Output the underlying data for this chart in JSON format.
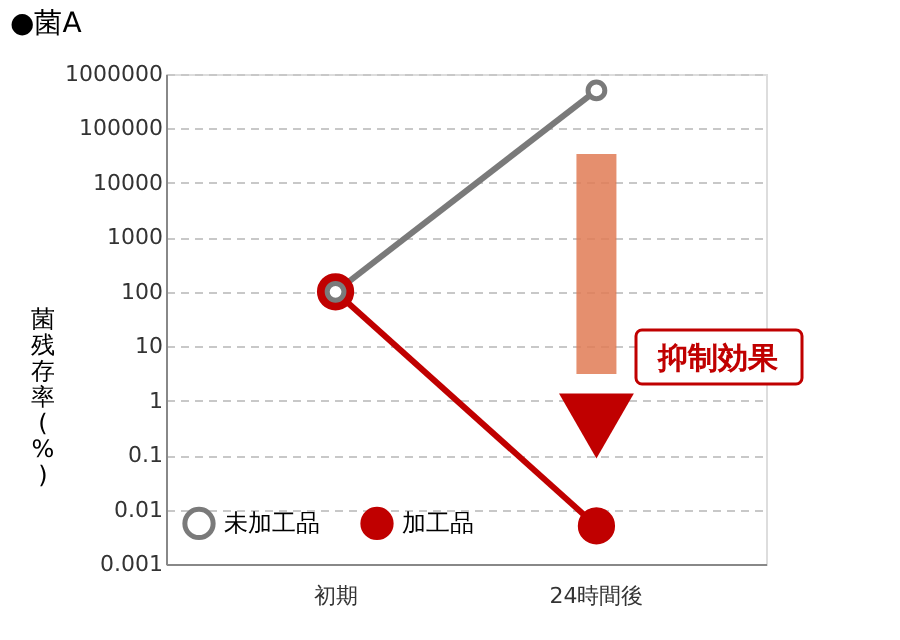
{
  "chart_data": {
    "type": "line",
    "title": "●菌A",
    "ylabel": "菌残存率(%)",
    "categories": [
      "初期",
      "24時間後"
    ],
    "series": [
      {
        "name": "未加工品",
        "color": "#7a7a7a",
        "values": [
          100,
          500000
        ]
      },
      {
        "name": "加工品",
        "color": "#c00000",
        "values": [
          100,
          0.005
        ]
      }
    ],
    "log": true,
    "ylim": [
      0.001,
      1000000
    ],
    "yticks": [
      0.001,
      0.01,
      0.1,
      1,
      10,
      100,
      1000,
      10000,
      100000,
      1000000
    ],
    "grid": "y",
    "legend": "bottom left",
    "marker": "circle",
    "line_style": "solid",
    "annotations": [
      "抑制効果"
    ]
  }
}
